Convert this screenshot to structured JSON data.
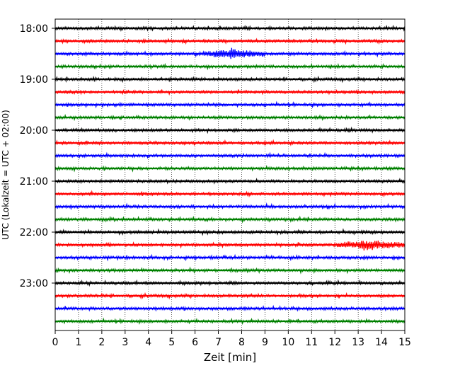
{
  "chart_data": {
    "type": "line",
    "title": "",
    "xlabel": "Zeit  [min]",
    "ylabel": "UTC (Lokalzeit = UTC + 02:00)",
    "xlim": [
      0,
      15
    ],
    "x_ticks": [
      "0",
      "1",
      "2",
      "3",
      "4",
      "5",
      "6",
      "7",
      "8",
      "9",
      "10",
      "11",
      "12",
      "13",
      "14",
      "15"
    ],
    "y_ticks": [
      "18:00",
      "19:00",
      "20:00",
      "21:00",
      "22:00",
      "23:00"
    ],
    "grid": "vertical dotted",
    "trace_colors": [
      "#000000",
      "#ff0000",
      "#0000ff",
      "#008000"
    ],
    "traces": [
      {
        "time": "18:00",
        "color": "#000000"
      },
      {
        "time": "18:15",
        "color": "#ff0000"
      },
      {
        "time": "18:30",
        "color": "#0000ff",
        "burst_min": [
          6.2,
          9.0
        ]
      },
      {
        "time": "18:45",
        "color": "#008000"
      },
      {
        "time": "19:00",
        "color": "#000000"
      },
      {
        "time": "19:15",
        "color": "#ff0000"
      },
      {
        "time": "19:30",
        "color": "#0000ff"
      },
      {
        "time": "19:45",
        "color": "#008000"
      },
      {
        "time": "20:00",
        "color": "#000000"
      },
      {
        "time": "20:15",
        "color": "#ff0000"
      },
      {
        "time": "20:30",
        "color": "#0000ff"
      },
      {
        "time": "20:45",
        "color": "#008000"
      },
      {
        "time": "21:00",
        "color": "#000000"
      },
      {
        "time": "21:15",
        "color": "#ff0000"
      },
      {
        "time": "21:30",
        "color": "#0000ff"
      },
      {
        "time": "21:45",
        "color": "#008000"
      },
      {
        "time": "22:00",
        "color": "#000000"
      },
      {
        "time": "22:15",
        "color": "#ff0000",
        "burst_min": [
          12.0,
          15.0
        ]
      },
      {
        "time": "22:30",
        "color": "#0000ff"
      },
      {
        "time": "22:45",
        "color": "#008000"
      },
      {
        "time": "23:00",
        "color": "#000000"
      },
      {
        "time": "23:15",
        "color": "#ff0000"
      },
      {
        "time": "23:30",
        "color": "#0000ff"
      },
      {
        "time": "23:45",
        "color": "#008000"
      }
    ]
  }
}
